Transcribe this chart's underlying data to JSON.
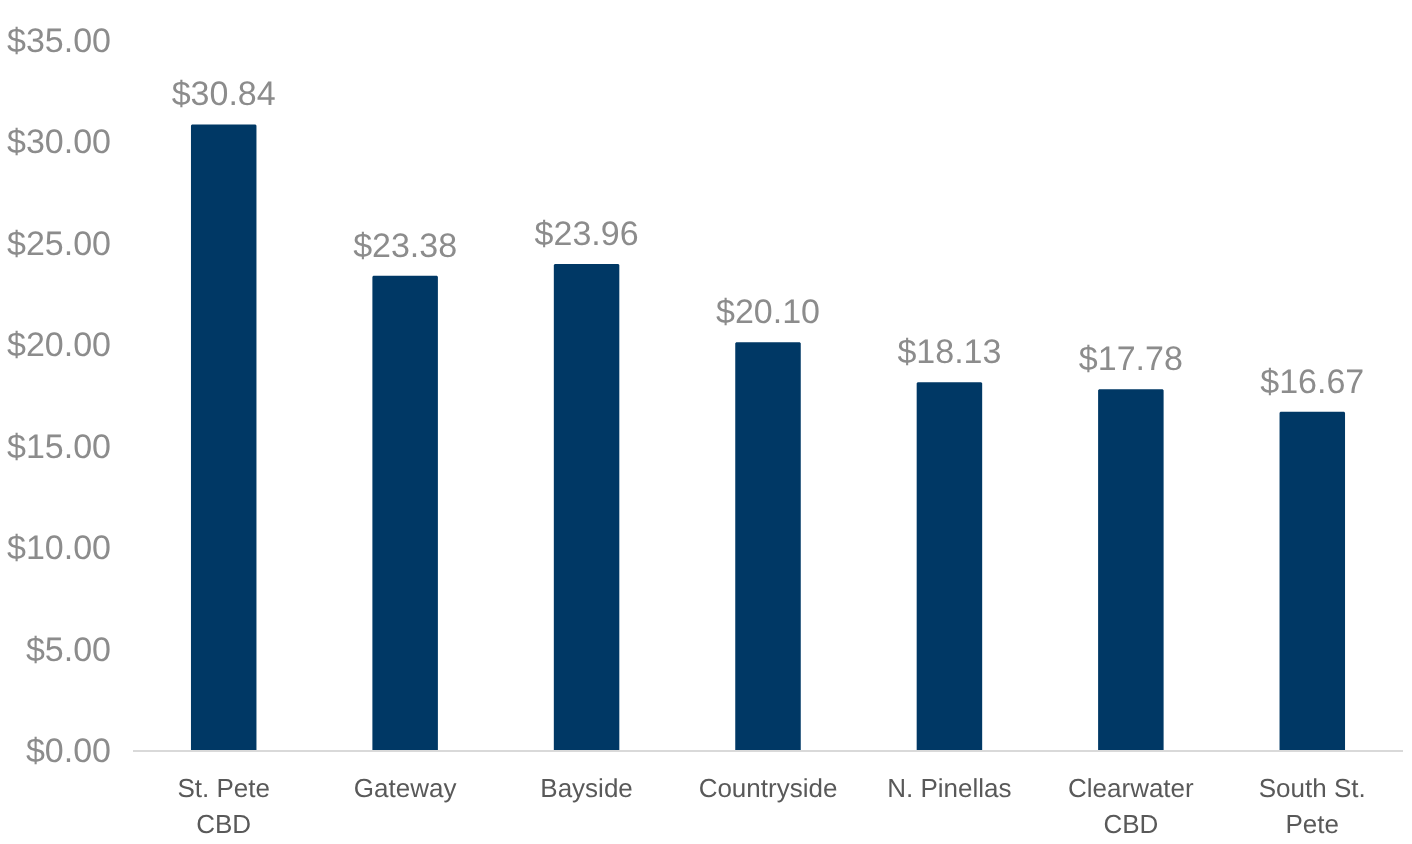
{
  "chart_data": {
    "type": "bar",
    "categories": [
      "St. Pete\nCBD",
      "Gateway",
      "Bayside",
      "Countryside",
      "N. Pinellas",
      "Clearwater\nCBD",
      "South St.\nPete"
    ],
    "values": [
      30.84,
      23.38,
      23.96,
      20.1,
      18.13,
      17.78,
      16.67
    ],
    "value_labels": [
      "$30.84",
      "$23.38",
      "$23.96",
      "$20.10",
      "$18.13",
      "$17.78",
      "$16.67"
    ],
    "color": "#003865",
    "ylim": [
      0,
      35
    ],
    "yticks": [
      {
        "value": 0,
        "label": "$0.00"
      },
      {
        "value": 5,
        "label": "$5.00"
      },
      {
        "value": 10,
        "label": "$10.00"
      },
      {
        "value": 15,
        "label": "$15.00"
      },
      {
        "value": 20,
        "label": "$20.00"
      },
      {
        "value": 25,
        "label": "$25.00"
      },
      {
        "value": 30,
        "label": "$30.00"
      },
      {
        "value": 35,
        "label": "$35.00"
      }
    ],
    "grid": false
  }
}
